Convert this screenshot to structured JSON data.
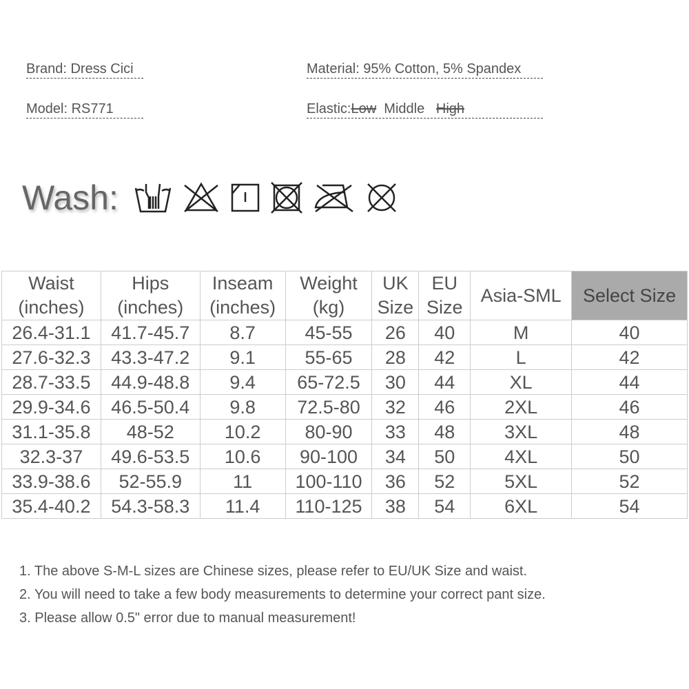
{
  "info": {
    "brand": "Brand: Dress Cici",
    "model": "Model: RS771",
    "material": "Material: 95% Cotton, 5% Spandex",
    "elastic_label": "Elastic:",
    "elastic_options": [
      "Low",
      "Middle",
      "High"
    ],
    "elastic_selected": "Middle"
  },
  "wash": {
    "label": "Wash:",
    "icons": [
      "hand-wash-icon",
      "no-bleach-icon",
      "line-dry-icon",
      "no-tumble-dry-icon",
      "no-iron-icon",
      "no-dry-clean-icon"
    ]
  },
  "table": {
    "headers": [
      [
        "Waist",
        "(inches)"
      ],
      [
        "Hips",
        "(inches)"
      ],
      [
        "Inseam",
        "(inches)"
      ],
      [
        "Weight",
        "(kg)"
      ],
      [
        "UK",
        "Size"
      ],
      [
        "EU",
        "Size"
      ],
      [
        "Asia-SML"
      ],
      [
        "Select Size"
      ]
    ],
    "rows": [
      [
        "26.4-31.1",
        "41.7-45.7",
        "8.7",
        "45-55",
        "26",
        "40",
        "M",
        "40"
      ],
      [
        "27.6-32.3",
        "43.3-47.2",
        "9.1",
        "55-65",
        "28",
        "42",
        "L",
        "42"
      ],
      [
        "28.7-33.5",
        "44.9-48.8",
        "9.4",
        "65-72.5",
        "30",
        "44",
        "XL",
        "44"
      ],
      [
        "29.9-34.6",
        "46.5-50.4",
        "9.8",
        "72.5-80",
        "32",
        "46",
        "2XL",
        "46"
      ],
      [
        "31.1-35.8",
        "48-52",
        "10.2",
        "80-90",
        "33",
        "48",
        "3XL",
        "48"
      ],
      [
        "32.3-37",
        "49.6-53.5",
        "10.6",
        "90-100",
        "34",
        "50",
        "4XL",
        "50"
      ],
      [
        "33.9-38.6",
        "52-55.9",
        "11",
        "100-110",
        "36",
        "52",
        "5XL",
        "52"
      ],
      [
        "35.4-40.2",
        "54.3-58.3",
        "11.4",
        "110-125",
        "38",
        "54",
        "6XL",
        "54"
      ]
    ],
    "highlight_color": "#aaaaaa"
  },
  "notes": [
    "1. The above S-M-L sizes are Chinese sizes, please refer to EU/UK Size and waist.",
    "2. You will need to take a few body measurements to determine your correct pant size.",
    "3. Please allow 0.5\" error due to manual measurement!"
  ]
}
